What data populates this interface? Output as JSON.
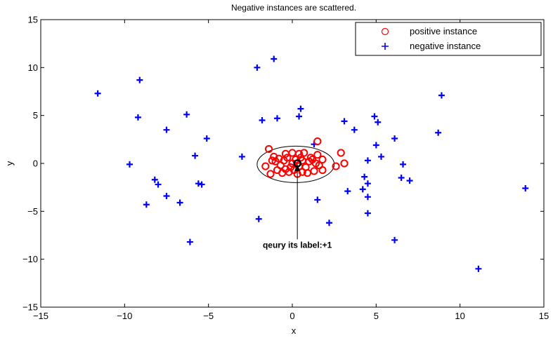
{
  "chart_data": {
    "type": "scatter",
    "title": "Negative instances are scattered.",
    "xlabel": "x",
    "ylabel": "y",
    "xlim": [
      -15,
      15
    ],
    "ylim": [
      -15,
      15
    ],
    "xticks": [
      -15,
      -10,
      -5,
      0,
      5,
      10,
      15
    ],
    "yticks": [
      -15,
      -10,
      -5,
      0,
      5,
      10,
      15
    ],
    "grid": false,
    "legend_position": "top-right",
    "colors": {
      "positive": "#ff0000",
      "negative": "#0000ff",
      "query": "#000000"
    },
    "series": [
      {
        "name": "positive instance",
        "marker": "circle",
        "points": [
          [
            -1.4,
            1.5
          ],
          [
            -1.1,
            0.7
          ],
          [
            -0.8,
            0.5
          ],
          [
            -0.4,
            1.0
          ],
          [
            0.0,
            1.1
          ],
          [
            0.4,
            1.0
          ],
          [
            0.7,
            1.1
          ],
          [
            1.1,
            0.6
          ],
          [
            1.5,
            2.3
          ],
          [
            1.5,
            0.9
          ],
          [
            2.9,
            1.1
          ],
          [
            3.1,
            0.0
          ],
          [
            2.6,
            -0.3
          ],
          [
            1.8,
            0.4
          ],
          [
            1.6,
            -0.2
          ],
          [
            1.3,
            -0.8
          ],
          [
            0.9,
            -1.0
          ],
          [
            0.6,
            -0.9
          ],
          [
            0.3,
            -1.1
          ],
          [
            0.1,
            -0.7
          ],
          [
            -0.2,
            -0.9
          ],
          [
            -0.6,
            -1.0
          ],
          [
            -0.9,
            -0.7
          ],
          [
            -1.3,
            -1.1
          ],
          [
            -1.6,
            -0.3
          ],
          [
            -1.0,
            0.2
          ],
          [
            -0.5,
            0.3
          ],
          [
            0.2,
            0.4
          ],
          [
            0.6,
            0.3
          ],
          [
            1.0,
            0.2
          ],
          [
            0.8,
            -0.4
          ],
          [
            0.4,
            -0.3
          ],
          [
            -0.1,
            -0.4
          ],
          [
            -0.3,
            0.6
          ],
          [
            1.2,
            0.4
          ],
          [
            -0.7,
            -0.2
          ],
          [
            1.4,
            0.0
          ],
          [
            0.0,
            0.0
          ],
          [
            -0.4,
            -0.6
          ],
          [
            0.5,
            0.6
          ],
          [
            -1.2,
            0.3
          ],
          [
            1.8,
            -0.7
          ]
        ]
      },
      {
        "name": "negative instance",
        "marker": "plus",
        "points": [
          [
            -11.6,
            7.3
          ],
          [
            -9.1,
            8.7
          ],
          [
            -9.2,
            4.8
          ],
          [
            -7.5,
            3.5
          ],
          [
            -6.3,
            5.1
          ],
          [
            -9.7,
            -0.1
          ],
          [
            -5.8,
            0.8
          ],
          [
            -5.1,
            2.6
          ],
          [
            -8.2,
            -1.7
          ],
          [
            -8.0,
            -2.2
          ],
          [
            -8.7,
            -4.3
          ],
          [
            -7.5,
            -3.4
          ],
          [
            -6.7,
            -4.1
          ],
          [
            -5.6,
            -2.1
          ],
          [
            -5.4,
            -2.2
          ],
          [
            -6.1,
            -8.2
          ],
          [
            -2.1,
            10.0
          ],
          [
            -1.1,
            10.9
          ],
          [
            -1.8,
            4.5
          ],
          [
            -0.9,
            4.7
          ],
          [
            0.5,
            5.7
          ],
          [
            0.4,
            4.9
          ],
          [
            -3.0,
            0.7
          ],
          [
            -2.0,
            -5.8
          ],
          [
            1.3,
            2.0
          ],
          [
            1.5,
            -3.8
          ],
          [
            2.2,
            -6.2
          ],
          [
            3.1,
            4.4
          ],
          [
            3.7,
            3.5
          ],
          [
            4.9,
            4.9
          ],
          [
            5.1,
            4.3
          ],
          [
            6.1,
            2.6
          ],
          [
            5.0,
            1.9
          ],
          [
            5.3,
            0.7
          ],
          [
            4.5,
            0.3
          ],
          [
            4.3,
            -1.4
          ],
          [
            4.5,
            -2.1
          ],
          [
            4.2,
            -2.7
          ],
          [
            3.3,
            -2.9
          ],
          [
            4.5,
            -3.5
          ],
          [
            4.5,
            -5.2
          ],
          [
            6.1,
            -8.0
          ],
          [
            6.5,
            -1.5
          ],
          [
            6.6,
            -0.1
          ],
          [
            7.0,
            -1.8
          ],
          [
            8.7,
            3.2
          ],
          [
            8.9,
            7.1
          ],
          [
            11.1,
            -11.0
          ],
          [
            13.9,
            -2.6
          ]
        ]
      }
    ],
    "query_point": [
      0.3,
      0.0
    ],
    "ellipse": {
      "center": [
        0.2,
        -0.1
      ],
      "rx": 2.3,
      "ry": 1.9
    },
    "annotation": {
      "text": "qeury its label:+1",
      "x": 0.3,
      "y": -8.8
    }
  }
}
